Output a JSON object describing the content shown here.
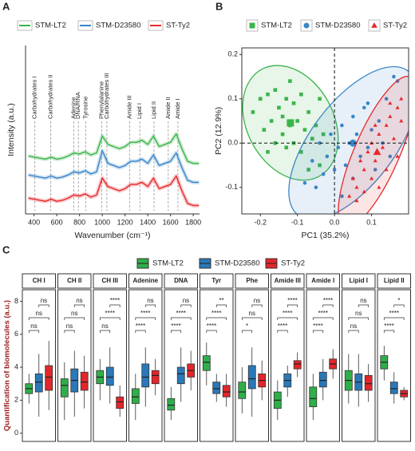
{
  "chart_data": [
    {
      "type": "line",
      "panel_label": "A",
      "xlabel": "Wavenumber (cm⁻¹)",
      "ylabel": "Intensity (a.u.)",
      "xlim": [
        325,
        1855
      ],
      "xticks": [
        400,
        600,
        800,
        1000,
        1200,
        1400,
        1600,
        1800
      ],
      "ylim": [
        0,
        8
      ],
      "legend": "top",
      "x": [
        350,
        400,
        450,
        500,
        550,
        600,
        650,
        700,
        750,
        800,
        850,
        900,
        950,
        1000,
        1050,
        1100,
        1150,
        1200,
        1250,
        1300,
        1350,
        1400,
        1450,
        1500,
        1550,
        1600,
        1650,
        1700,
        1750,
        1800,
        1850
      ],
      "series": [
        {
          "name": "STM-LT2",
          "color": "#3bb54a",
          "values": [
            2.75,
            2.7,
            2.65,
            2.6,
            2.7,
            2.6,
            2.65,
            2.75,
            2.9,
            2.85,
            2.95,
            2.8,
            2.9,
            3.7,
            3.3,
            3.2,
            3.1,
            3.2,
            3.4,
            3.4,
            3.5,
            3.3,
            3.7,
            3.2,
            3.3,
            3.4,
            3.8,
            3.1,
            2.5,
            2.4,
            2.4
          ]
        },
        {
          "name": "STM-D23580",
          "color": "#3a86c8",
          "values": [
            1.85,
            1.8,
            1.75,
            1.7,
            1.8,
            1.7,
            1.75,
            1.85,
            2.0,
            1.95,
            2.05,
            1.9,
            2.0,
            3.0,
            2.4,
            2.3,
            2.2,
            2.3,
            2.5,
            2.5,
            2.6,
            2.4,
            2.8,
            2.3,
            2.4,
            2.5,
            2.9,
            2.2,
            1.6,
            1.5,
            1.5
          ]
        },
        {
          "name": "ST-Ty2",
          "color": "#e8282b",
          "values": [
            0.75,
            0.7,
            0.65,
            0.6,
            0.7,
            0.6,
            0.65,
            0.75,
            0.9,
            0.85,
            0.95,
            0.8,
            0.9,
            1.7,
            1.3,
            1.2,
            1.1,
            1.2,
            1.4,
            1.4,
            1.5,
            1.3,
            1.7,
            1.2,
            1.3,
            1.4,
            1.8,
            1.1,
            0.5,
            0.4,
            0.4
          ]
        }
      ],
      "annotations": [
        {
          "label": "Carbohydrates I",
          "x": 407
        },
        {
          "label": "Carbohydrates II",
          "x": 546
        },
        {
          "label": "Adenine",
          "x": 750
        },
        {
          "label": "DNA/RNA",
          "x": 790
        },
        {
          "label": "Tyrosine",
          "x": 855
        },
        {
          "label": "Phenylalanine",
          "x": 995
        },
        {
          "label": "Carbohydrates III",
          "x": 1040
        },
        {
          "label": "Amide III",
          "x": 1240
        },
        {
          "label": "Lipid I",
          "x": 1330
        },
        {
          "label": "Lipid II",
          "x": 1455
        },
        {
          "label": "Amide II",
          "x": 1580
        },
        {
          "label": "Amide I",
          "x": 1665
        }
      ]
    },
    {
      "type": "scatter",
      "panel_label": "B",
      "xlabel": "PC1 (35.2%)",
      "ylabel": "PC2 (12.9%)",
      "xlim": [
        -0.25,
        0.2
      ],
      "xticks": [
        -0.2,
        -0.1,
        {
          "value": 0,
          "label": "0.0"
        },
        0.1
      ],
      "ylim": [
        -0.16,
        0.215
      ],
      "yticks": [
        -0.1,
        {
          "value": 0,
          "label": "0.0"
        },
        0.1,
        0.2
      ],
      "ellipse": true,
      "legend": "top",
      "series": [
        {
          "name": "STM-LT2",
          "color": "#3bb54a",
          "marker": "square",
          "x": [
            -0.22,
            -0.2,
            -0.19,
            -0.18,
            -0.17,
            -0.16,
            -0.16,
            -0.15,
            -0.14,
            -0.14,
            -0.13,
            -0.13,
            -0.12,
            -0.11,
            -0.11,
            -0.1,
            -0.09,
            -0.09,
            -0.08,
            -0.07,
            -0.06,
            -0.05,
            -0.04,
            -0.04,
            -0.03,
            -0.12,
            -0.18,
            -0.07
          ],
          "y": [
            0.07,
            0.1,
            0.03,
            0.11,
            0.05,
            0.12,
            0.0,
            0.08,
            0.02,
            0.06,
            0.1,
            -0.01,
            0.04,
            0.09,
            0.0,
            0.05,
            0.11,
            -0.02,
            0.03,
            0.07,
            0.01,
            0.04,
            -0.05,
            0.1,
            0.02,
            0.14,
            -0.02,
            -0.06
          ]
        },
        {
          "name": "STM-D23580",
          "color": "#3a86c8",
          "marker": "circle",
          "x": [
            -0.08,
            -0.06,
            -0.05,
            -0.04,
            -0.03,
            -0.02,
            -0.01,
            0.0,
            0.01,
            0.02,
            0.02,
            0.03,
            0.04,
            0.05,
            0.05,
            0.06,
            0.07,
            0.08,
            0.09,
            0.1,
            0.11,
            0.12,
            0.13,
            0.14,
            0.16,
            0.17,
            0.15,
            0.09
          ],
          "y": [
            -0.09,
            -0.04,
            -0.1,
            0.0,
            -0.07,
            -0.03,
            0.02,
            -0.06,
            -0.01,
            -0.12,
            0.04,
            -0.05,
            0.0,
            -0.08,
            0.06,
            0.02,
            -0.03,
            0.08,
            -0.01,
            0.03,
            -0.06,
            0.05,
            0.0,
            0.1,
            0.15,
            0.14,
            -0.03,
            0.09
          ]
        },
        {
          "name": "ST-Ty2",
          "color": "#e8282b",
          "marker": "triangle",
          "x": [
            0.04,
            0.05,
            0.06,
            0.07,
            0.08,
            0.08,
            0.09,
            0.1,
            0.1,
            0.11,
            0.12,
            0.12,
            0.13,
            0.14,
            0.14,
            0.15,
            0.16,
            0.17,
            0.17,
            0.18,
            0.11,
            0.15,
            0.06,
            0.18
          ],
          "y": [
            -0.12,
            -0.08,
            -0.1,
            -0.04,
            -0.11,
            -0.06,
            -0.02,
            -0.08,
            0.0,
            -0.04,
            0.02,
            -0.1,
            -0.01,
            0.04,
            -0.06,
            0.06,
            0.01,
            0.08,
            -0.03,
            0.1,
            0.04,
            0.09,
            -0.13,
            0.05
          ]
        }
      ]
    },
    {
      "type": "box",
      "panel_label": "C",
      "ylabel": "Quantification of biomolecules (a.u.)",
      "ylim": [
        -0.5,
        8.7
      ],
      "yticks": [
        0,
        2,
        4,
        6,
        8
      ],
      "legend": "top",
      "groups": [
        {
          "name": "STM-LT2",
          "color": "#2fae49"
        },
        {
          "name": "STM-D23580",
          "color": "#2a78b8"
        },
        {
          "name": "ST-Ty2",
          "color": "#e3262a"
        }
      ],
      "facets": [
        {
          "title": "CH I",
          "comparisons": [
            "ns",
            "ns",
            "ns"
          ],
          "boxes": [
            {
              "min": 1.8,
              "q1": 2.4,
              "median": 2.7,
              "q3": 3.0,
              "max": 3.6
            },
            {
              "min": 1.0,
              "q1": 2.5,
              "median": 3.1,
              "q3": 3.6,
              "max": 4.8
            },
            {
              "min": 1.4,
              "q1": 2.6,
              "median": 3.4,
              "q3": 4.1,
              "max": 5.6
            }
          ]
        },
        {
          "title": "CH II",
          "comparisons": [
            "ns",
            "ns",
            "ns"
          ],
          "boxes": [
            {
              "min": 0.8,
              "q1": 2.2,
              "median": 2.9,
              "q3": 3.3,
              "max": 4.3
            },
            {
              "min": 1.0,
              "q1": 2.5,
              "median": 3.2,
              "q3": 3.9,
              "max": 5.0
            },
            {
              "min": 1.5,
              "q1": 2.6,
              "median": 3.1,
              "q3": 3.7,
              "max": 4.7
            }
          ]
        },
        {
          "title": "CH III",
          "comparisons": [
            "ns",
            "****",
            "****"
          ],
          "boxes": [
            {
              "min": 2.0,
              "q1": 3.0,
              "median": 3.4,
              "q3": 3.8,
              "max": 4.5
            },
            {
              "min": 1.8,
              "q1": 2.9,
              "median": 3.4,
              "q3": 4.0,
              "max": 5.2
            },
            {
              "min": 1.0,
              "q1": 1.5,
              "median": 1.9,
              "q3": 2.2,
              "max": 2.9
            }
          ]
        },
        {
          "title": "Adenine",
          "comparisons": [
            "****",
            "****",
            "ns"
          ],
          "boxes": [
            {
              "min": 0.8,
              "q1": 1.8,
              "median": 2.2,
              "q3": 2.7,
              "max": 3.6
            },
            {
              "min": 1.6,
              "q1": 2.8,
              "median": 3.4,
              "q3": 4.2,
              "max": 5.2
            },
            {
              "min": 2.3,
              "q1": 3.0,
              "median": 3.5,
              "q3": 3.8,
              "max": 4.5
            }
          ]
        },
        {
          "title": "DNA",
          "comparisons": [
            "****",
            "****",
            "ns"
          ],
          "boxes": [
            {
              "min": 0.8,
              "q1": 1.4,
              "median": 1.7,
              "q3": 2.1,
              "max": 2.8
            },
            {
              "min": 1.9,
              "q1": 3.0,
              "median": 3.6,
              "q3": 4.0,
              "max": 5.2
            },
            {
              "min": 2.6,
              "q1": 3.4,
              "median": 3.8,
              "q3": 4.2,
              "max": 5.0
            }
          ]
        },
        {
          "title": "Tyr",
          "comparisons": [
            "****",
            "****",
            "**"
          ],
          "boxes": [
            {
              "min": 2.9,
              "q1": 3.8,
              "median": 4.3,
              "q3": 4.7,
              "max": 5.5
            },
            {
              "min": 1.9,
              "q1": 2.4,
              "median": 2.7,
              "q3": 3.1,
              "max": 3.6
            },
            {
              "min": 1.6,
              "q1": 2.2,
              "median": 2.5,
              "q3": 2.9,
              "max": 3.6
            }
          ]
        },
        {
          "title": "Phe",
          "comparisons": [
            "*",
            "ns",
            "ns"
          ],
          "boxes": [
            {
              "min": 1.2,
              "q1": 2.1,
              "median": 2.5,
              "q3": 3.1,
              "max": 4.0
            },
            {
              "min": 1.0,
              "q1": 2.7,
              "median": 3.3,
              "q3": 4.1,
              "max": 5.2
            },
            {
              "min": 2.0,
              "q1": 2.8,
              "median": 3.2,
              "q3": 3.6,
              "max": 4.4
            }
          ]
        },
        {
          "title": "Amide III",
          "comparisons": [
            "****",
            "****",
            "****"
          ],
          "boxes": [
            {
              "min": 0.8,
              "q1": 1.5,
              "median": 2.0,
              "q3": 2.5,
              "max": 3.2
            },
            {
              "min": 2.2,
              "q1": 2.8,
              "median": 3.2,
              "q3": 3.6,
              "max": 4.1
            },
            {
              "min": 3.4,
              "q1": 3.9,
              "median": 4.2,
              "q3": 4.4,
              "max": 4.9
            }
          ]
        },
        {
          "title": "Amide I",
          "comparisons": [
            "****",
            "****",
            "****"
          ],
          "boxes": [
            {
              "min": 0.8,
              "q1": 1.6,
              "median": 2.1,
              "q3": 2.8,
              "max": 3.6
            },
            {
              "min": 2.0,
              "q1": 2.8,
              "median": 3.2,
              "q3": 3.7,
              "max": 4.5
            },
            {
              "min": 3.3,
              "q1": 3.9,
              "median": 4.2,
              "q3": 4.5,
              "max": 5.1
            }
          ]
        },
        {
          "title": "Lipid I",
          "comparisons": [
            "ns",
            "ns",
            "ns"
          ],
          "boxes": [
            {
              "min": 1.8,
              "q1": 2.6,
              "median": 3.2,
              "q3": 3.8,
              "max": 4.8
            },
            {
              "min": 1.6,
              "q1": 2.6,
              "median": 3.1,
              "q3": 3.6,
              "max": 4.8
            },
            {
              "min": 1.9,
              "q1": 2.6,
              "median": 3.0,
              "q3": 3.5,
              "max": 4.2
            }
          ]
        },
        {
          "title": "Lipid II",
          "comparisons": [
            "****",
            "****",
            "*"
          ],
          "boxes": [
            {
              "min": 3.2,
              "q1": 3.9,
              "median": 4.3,
              "q3": 4.7,
              "max": 5.3
            },
            {
              "min": 1.8,
              "q1": 2.4,
              "median": 2.7,
              "q3": 3.1,
              "max": 3.7
            },
            {
              "min": 2.0,
              "q1": 2.2,
              "median": 2.4,
              "q3": 2.6,
              "max": 2.8
            }
          ]
        }
      ]
    }
  ]
}
